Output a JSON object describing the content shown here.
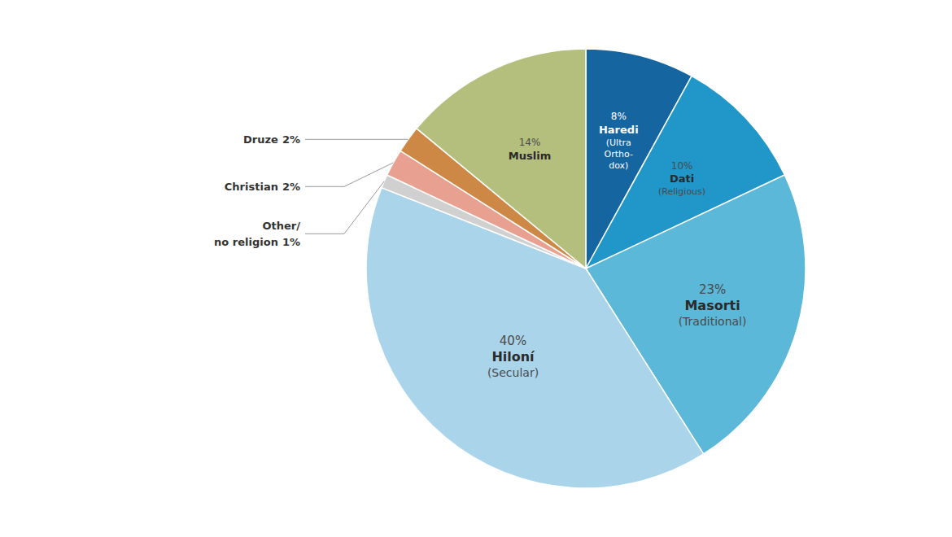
{
  "chart_data": {
    "type": "pie",
    "categories": [
      "Haredi",
      "Dati",
      "Masorti",
      "Hiloní",
      "Other/\nno religion",
      "Christian",
      "Druze",
      "Muslim"
    ],
    "values": [
      8,
      10,
      23,
      40,
      1,
      2,
      2,
      14
    ],
    "value_labels": [
      "8%",
      "10%",
      "23%",
      "40%",
      "1%",
      "2%",
      "2%",
      "14%"
    ],
    "colors": [
      "#1565a0",
      "#2196c8",
      "#5bb8d8",
      "#aad4ea",
      "#d0d0d0",
      "#e8a090",
      "#cc8844",
      "#b5bf7d"
    ],
    "annotations": [
      "(Ultra\nOrtho-\ndox)",
      "(Religious)",
      "(Traditional)",
      "(Secular)",
      null,
      null,
      null,
      null
    ],
    "data_labels": true
  }
}
